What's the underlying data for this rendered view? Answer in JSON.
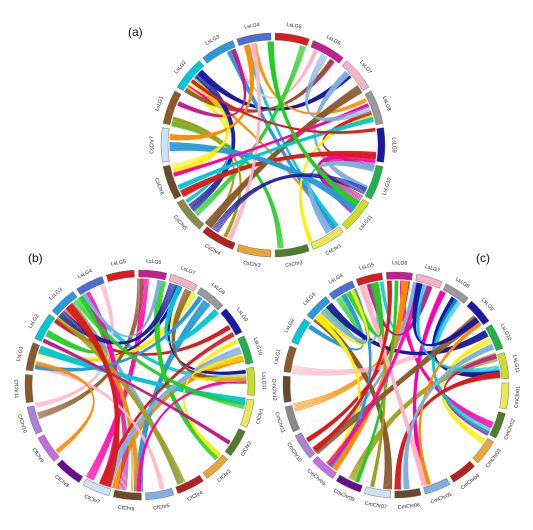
{
  "panels": [
    {
      "id": "a",
      "label": "(a)",
      "segments": [
        {
          "name": "CsChr7",
          "color": "#cfe2f3"
        },
        {
          "name": "LsLG1",
          "color": "#8b5a2b"
        },
        {
          "name": "LsLG2",
          "color": "#00c8d6"
        },
        {
          "name": "LsLG3",
          "color": "#2a9bd8"
        },
        {
          "name": "LsLG4",
          "color": "#4a6fd6"
        },
        {
          "name": "LsLG5",
          "color": "#d71e1e"
        },
        {
          "name": "LsLG6",
          "color": "#c41e8e"
        },
        {
          "name": "LsLG7",
          "color": "#f2b5c8"
        },
        {
          "name": "LsLG8",
          "color": "#9a9a9a"
        },
        {
          "name": "LsLG9",
          "color": "#1a1aa0"
        },
        {
          "name": "LsLG10",
          "color": "#22b14c"
        },
        {
          "name": "LsLG11",
          "color": "#c8de2a"
        },
        {
          "name": "CsChr1",
          "color": "#e8e85a"
        },
        {
          "name": "CsChr2",
          "color": "#4f7d2a"
        },
        {
          "name": "CsChr3",
          "color": "#e7a53a"
        },
        {
          "name": "CsChr4",
          "color": "#b22222"
        },
        {
          "name": "CsChr5",
          "color": "#8a8a4a"
        },
        {
          "name": "CsChr6",
          "color": "#6b4a2a"
        }
      ]
    },
    {
      "id": "b",
      "label": "(b)",
      "segments": [
        {
          "name": "CfChr11",
          "color": "#8b5a2b"
        },
        {
          "name": "LsLG1",
          "color": "#8b5a2b"
        },
        {
          "name": "LsLG2",
          "color": "#00c8d6"
        },
        {
          "name": "LsLG3",
          "color": "#2a9bd8"
        },
        {
          "name": "LsLG4",
          "color": "#4a6fd6"
        },
        {
          "name": "LsLG5",
          "color": "#d71e1e"
        },
        {
          "name": "LsLG6",
          "color": "#c41e8e"
        },
        {
          "name": "LsLG7",
          "color": "#f2b5c8"
        },
        {
          "name": "LsLG8",
          "color": "#9a9a9a"
        },
        {
          "name": "LsLG9",
          "color": "#1a1aa0"
        },
        {
          "name": "LsLG10",
          "color": "#22b14c"
        },
        {
          "name": "LsLG11",
          "color": "#c8de2a"
        },
        {
          "name": "CfChr1",
          "color": "#e8e85a"
        },
        {
          "name": "CfChr2",
          "color": "#4f7d2a"
        },
        {
          "name": "CfChr3",
          "color": "#e7a53a"
        },
        {
          "name": "CfChr4",
          "color": "#b22222"
        },
        {
          "name": "CfChr5",
          "color": "#7fb0e0"
        },
        {
          "name": "CfChr6",
          "color": "#6b4a2a"
        },
        {
          "name": "CfChr7",
          "color": "#cfe2f3"
        },
        {
          "name": "CfChr8",
          "color": "#6a0d8a"
        },
        {
          "name": "CfChr9",
          "color": "#c26fe0"
        },
        {
          "name": "CfChr10",
          "color": "#b07fd8"
        }
      ]
    },
    {
      "id": "c",
      "label": "(c)",
      "segments": [
        {
          "name": "CmChr12",
          "color": "#6b4a2a"
        },
        {
          "name": "LsLG1",
          "color": "#8b5a2b"
        },
        {
          "name": "LsLG2",
          "color": "#00c8d6"
        },
        {
          "name": "LsLG3",
          "color": "#2a9bd8"
        },
        {
          "name": "LsLG4",
          "color": "#4a6fd6"
        },
        {
          "name": "LsLG5",
          "color": "#d71e1e"
        },
        {
          "name": "LsLG6",
          "color": "#c41e8e"
        },
        {
          "name": "LsLG7",
          "color": "#f2b5c8"
        },
        {
          "name": "LsLG8",
          "color": "#9a9a9a"
        },
        {
          "name": "LsLG9",
          "color": "#1a1aa0"
        },
        {
          "name": "LsLG10",
          "color": "#22b14c"
        },
        {
          "name": "LsLG11",
          "color": "#c8de2a"
        },
        {
          "name": "CmChr01",
          "color": "#e8e85a"
        },
        {
          "name": "CmChr02",
          "color": "#4f7d2a"
        },
        {
          "name": "CmChr03",
          "color": "#e7a53a"
        },
        {
          "name": "CmChr04",
          "color": "#b22222"
        },
        {
          "name": "CmChr05",
          "color": "#7fb0e0"
        },
        {
          "name": "CmChr06",
          "color": "#6b4a2a"
        },
        {
          "name": "CmChr07",
          "color": "#cfe2f3"
        },
        {
          "name": "CmChr08",
          "color": "#6a0d8a"
        },
        {
          "name": "CmChr09",
          "color": "#c26fe0"
        },
        {
          "name": "CmChr10",
          "color": "#b07fd8"
        },
        {
          "name": "CmChr11",
          "color": "#8a8a8a"
        }
      ]
    }
  ],
  "ribbon_palette": [
    "#00c8d6",
    "#ff00aa",
    "#1a1aa0",
    "#ff8c00",
    "#22cc22",
    "#ffee00",
    "#d71e1e",
    "#7fb0e0",
    "#a0a020",
    "#8b5a2b",
    "#ffb6c8",
    "#2a9bd8",
    "#c41e8e"
  ]
}
